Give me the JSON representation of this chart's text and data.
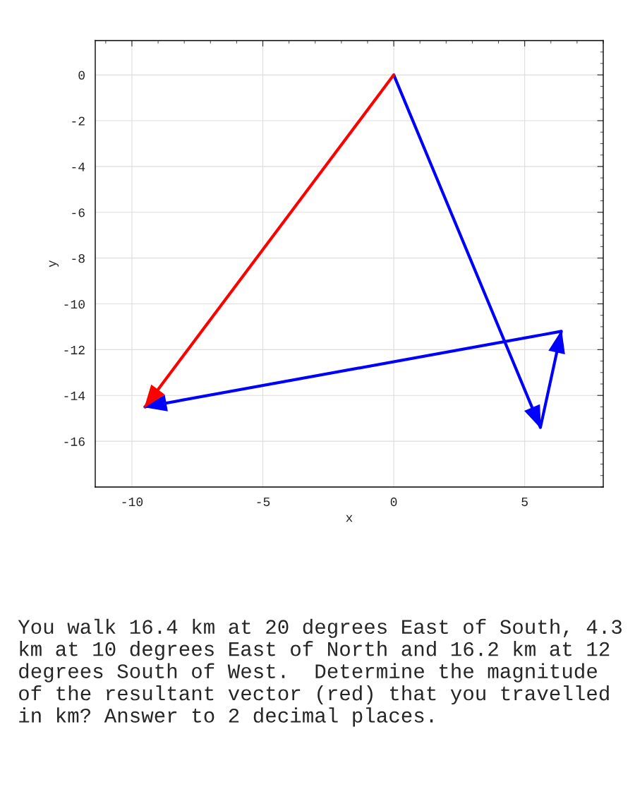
{
  "chart_data": {
    "type": "line",
    "xlabel": "x",
    "ylabel": "y",
    "series": [
      {
        "color": "#0000ff",
        "x": [
          0,
          5.6,
          6.4,
          -9.5
        ],
        "values": [
          0,
          -15.4,
          -11.2,
          -14.5
        ]
      },
      {
        "color": "#ff0000",
        "x": [
          0,
          -9.5
        ],
        "values": [
          0,
          -14.5
        ]
      }
    ],
    "xlim": [
      -11.4,
      8.0
    ],
    "ylim": [
      -18,
      1.5
    ],
    "xticks": [
      -10,
      -5,
      0,
      5
    ],
    "yticks": [
      -16,
      -14,
      -12,
      -10,
      -8,
      -6,
      -4,
      -2,
      0
    ],
    "grid": true,
    "legend": false,
    "annotations": [
      "You walk 16.4 km at 20 degrees East of South, 4.3 km at 10 degrees East of North and 16.2 km at 12 degrees South of West.  Determine the magnitude of the resultant vector (red) that you travelled in km? Answer to 2 decimal places."
    ]
  }
}
